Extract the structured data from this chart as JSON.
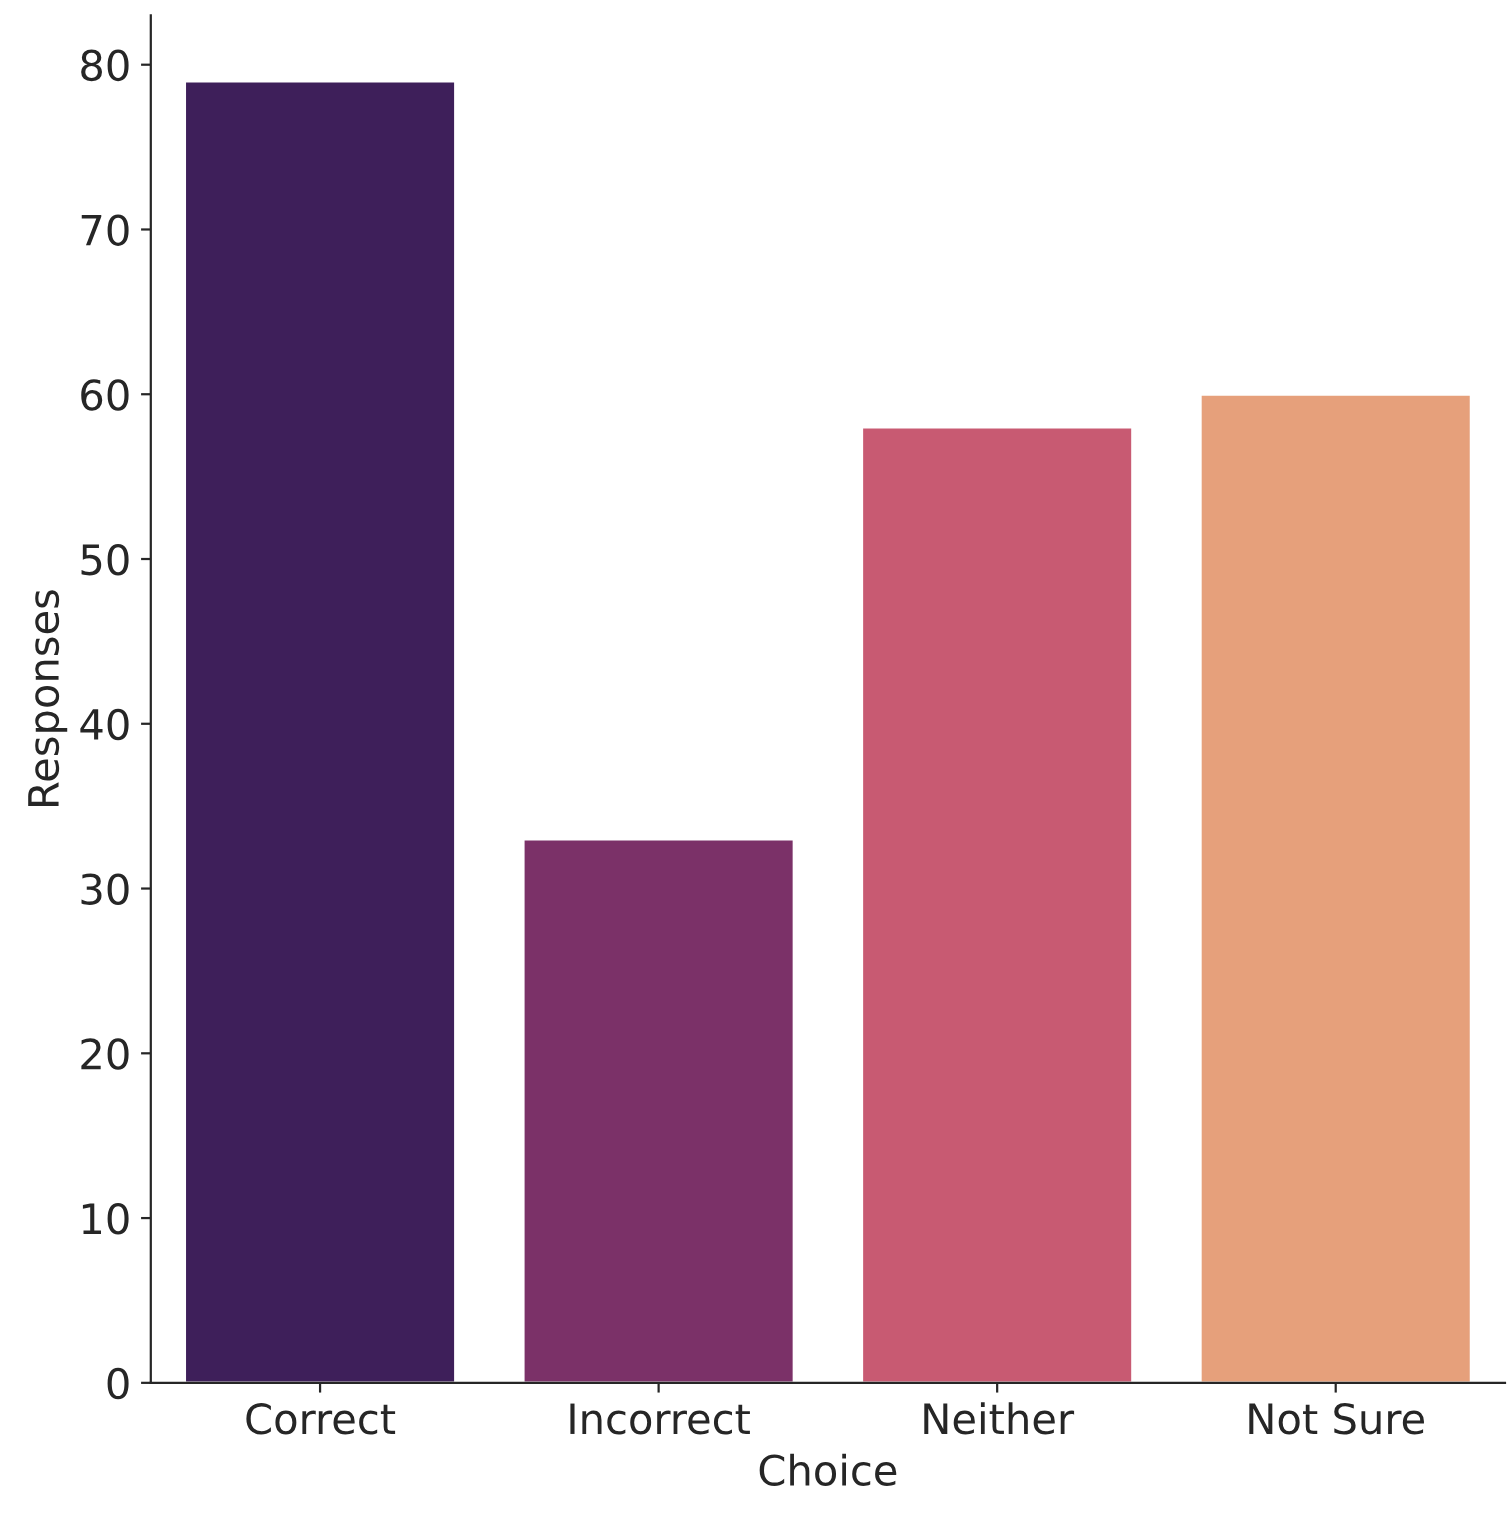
{
  "chart_data": {
    "type": "bar",
    "xlabel": "Choice",
    "ylabel": "Responses",
    "categories": [
      "Correct",
      "Incorrect",
      "Neither",
      "Not Sure"
    ],
    "values": [
      79,
      33,
      58,
      60
    ],
    "colors": [
      "#3e1f5a",
      "#7b3168",
      "#c85a72",
      "#e6a07b"
    ],
    "ylim": [
      0,
      83
    ],
    "yticks": [
      0,
      10,
      20,
      30,
      40,
      50,
      60,
      70,
      80
    ],
    "grid": false,
    "legend": false
  }
}
